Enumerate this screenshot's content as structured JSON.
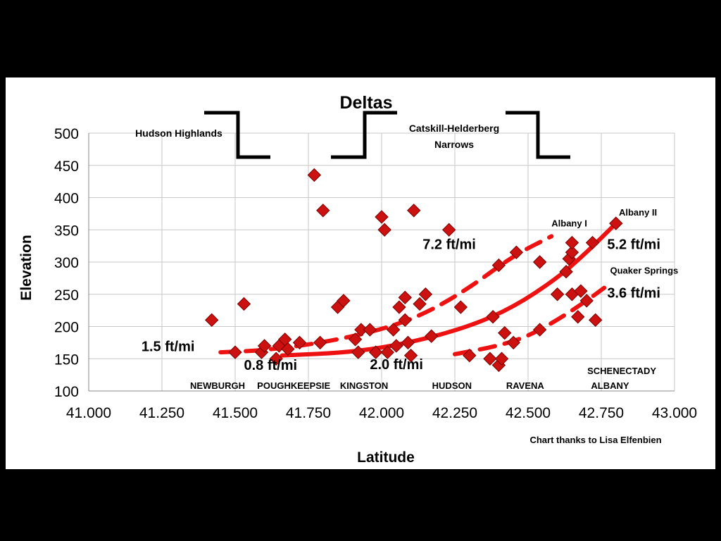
{
  "chart_data": {
    "type": "scatter",
    "title": "Deltas",
    "xlabel": "Latitude",
    "ylabel": "Elevation",
    "xlim": [
      41.0,
      43.0
    ],
    "ylim": [
      100,
      500
    ],
    "xticks": [
      "41.000",
      "41.250",
      "41.500",
      "41.750",
      "42.000",
      "42.250",
      "42.500",
      "42.750",
      "43.000"
    ],
    "yticks": [
      "100",
      "150",
      "200",
      "250",
      "300",
      "350",
      "400",
      "450",
      "500"
    ],
    "grid": true,
    "legend": "none",
    "marker_color": "#cc1111",
    "trend_color": "#ee1111",
    "points": [
      {
        "x": 41.42,
        "y": 210
      },
      {
        "x": 41.5,
        "y": 160
      },
      {
        "x": 41.53,
        "y": 235
      },
      {
        "x": 41.59,
        "y": 160
      },
      {
        "x": 41.6,
        "y": 170
      },
      {
        "x": 41.64,
        "y": 150
      },
      {
        "x": 41.65,
        "y": 170
      },
      {
        "x": 41.67,
        "y": 180
      },
      {
        "x": 41.68,
        "y": 165
      },
      {
        "x": 41.72,
        "y": 175
      },
      {
        "x": 41.77,
        "y": 435
      },
      {
        "x": 41.79,
        "y": 175
      },
      {
        "x": 41.8,
        "y": 380
      },
      {
        "x": 41.85,
        "y": 230
      },
      {
        "x": 41.87,
        "y": 240
      },
      {
        "x": 41.91,
        "y": 180
      },
      {
        "x": 41.92,
        "y": 160
      },
      {
        "x": 41.93,
        "y": 195
      },
      {
        "x": 41.96,
        "y": 195
      },
      {
        "x": 41.98,
        "y": 160
      },
      {
        "x": 42.0,
        "y": 370
      },
      {
        "x": 42.01,
        "y": 350
      },
      {
        "x": 42.02,
        "y": 160
      },
      {
        "x": 42.04,
        "y": 195
      },
      {
        "x": 42.05,
        "y": 170
      },
      {
        "x": 42.06,
        "y": 230
      },
      {
        "x": 42.08,
        "y": 245
      },
      {
        "x": 42.08,
        "y": 210
      },
      {
        "x": 42.09,
        "y": 175
      },
      {
        "x": 42.1,
        "y": 155
      },
      {
        "x": 42.11,
        "y": 380
      },
      {
        "x": 42.13,
        "y": 235
      },
      {
        "x": 42.15,
        "y": 250
      },
      {
        "x": 42.17,
        "y": 185
      },
      {
        "x": 42.23,
        "y": 350
      },
      {
        "x": 42.27,
        "y": 230
      },
      {
        "x": 42.3,
        "y": 155
      },
      {
        "x": 42.37,
        "y": 150
      },
      {
        "x": 42.38,
        "y": 215
      },
      {
        "x": 42.4,
        "y": 140
      },
      {
        "x": 42.41,
        "y": 150
      },
      {
        "x": 42.4,
        "y": 295
      },
      {
        "x": 42.42,
        "y": 190
      },
      {
        "x": 42.45,
        "y": 175
      },
      {
        "x": 42.46,
        "y": 315
      },
      {
        "x": 42.54,
        "y": 300
      },
      {
        "x": 42.54,
        "y": 195
      },
      {
        "x": 42.6,
        "y": 250
      },
      {
        "x": 42.63,
        "y": 285
      },
      {
        "x": 42.64,
        "y": 305
      },
      {
        "x": 42.65,
        "y": 315
      },
      {
        "x": 42.65,
        "y": 330
      },
      {
        "x": 42.65,
        "y": 250
      },
      {
        "x": 42.67,
        "y": 215
      },
      {
        "x": 42.68,
        "y": 255
      },
      {
        "x": 42.7,
        "y": 240
      },
      {
        "x": 42.72,
        "y": 330
      },
      {
        "x": 42.73,
        "y": 210
      },
      {
        "x": 42.8,
        "y": 360
      }
    ],
    "trend_lines": [
      {
        "style": "dashed",
        "x": [
          41.45,
          41.6,
          41.8,
          42.0,
          42.15,
          42.3,
          42.45,
          42.58
        ],
        "y": [
          160,
          163,
          175,
          195,
          220,
          260,
          310,
          340
        ]
      },
      {
        "style": "solid",
        "x": [
          41.66,
          41.9,
          42.1,
          42.3,
          42.45,
          42.6,
          42.7,
          42.8
        ],
        "y": [
          155,
          160,
          175,
          200,
          230,
          275,
          315,
          360
        ]
      },
      {
        "style": "dashed",
        "x": [
          42.25,
          42.4,
          42.5,
          42.6,
          42.7,
          42.76
        ],
        "y": [
          157,
          170,
          185,
          210,
          240,
          260
        ]
      }
    ],
    "rate_labels": [
      {
        "text": "1.5 ft/mi",
        "x": 41.18,
        "y": 162
      },
      {
        "text": "0.8 ft/mi",
        "x": 41.53,
        "y": 133
      },
      {
        "text": "2.0 ft/mi",
        "x": 41.96,
        "y": 134
      },
      {
        "text": "7.2 ft/mi",
        "x": 42.14,
        "y": 320
      },
      {
        "text": "5.2 ft/mi",
        "x": 42.77,
        "y": 320
      },
      {
        "text": "3.6 ft/mi",
        "x": 42.77,
        "y": 245
      }
    ],
    "small_labels": [
      {
        "text": "Albany I",
        "x": 42.58,
        "y": 355
      },
      {
        "text": "Albany II",
        "x": 42.81,
        "y": 372
      },
      {
        "text": "Quaker Springs",
        "x": 42.78,
        "y": 282
      }
    ],
    "town_labels": [
      {
        "text": "NEWBURGH",
        "x": 41.44
      },
      {
        "text": "POUGHKEEPSIE",
        "x": 41.7
      },
      {
        "text": "KINGSTON",
        "x": 41.94
      },
      {
        "text": "HUDSON",
        "x": 42.24
      },
      {
        "text": "RAVENA",
        "x": 42.49
      },
      {
        "text": "ALBANY",
        "x": 42.78
      }
    ],
    "extra_labels": [
      {
        "text": "SCHENECTADY",
        "x": 42.82,
        "y": 126
      }
    ],
    "annotations": {
      "hudson_highlands": "Hudson Highlands",
      "catskill_helderberg_line1": "Catskill-Helderberg",
      "catskill_helderberg_line2": "Narrows",
      "credit": "Chart thanks to Lisa Elfenbien"
    }
  }
}
